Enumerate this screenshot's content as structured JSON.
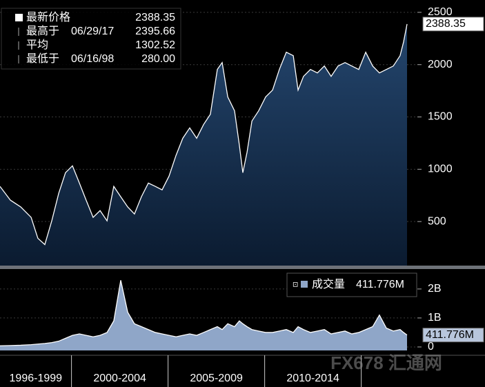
{
  "chart_data": [
    {
      "type": "area",
      "stats": [
        {
          "label": "最新价格",
          "value": 2388.35
        },
        {
          "label": "最高于",
          "date": "06/29/17",
          "value": 2395.66
        },
        {
          "label": "平均",
          "value": 1302.52
        },
        {
          "label": "最低于",
          "date": "06/16/98",
          "value": 280,
          "value_label": "280.00"
        }
      ],
      "x": [
        1996.3,
        1996.84,
        1997.37,
        1997.91,
        1998.26,
        1998.62,
        1998.98,
        1999.34,
        1999.69,
        2000.05,
        2000.41,
        2000.76,
        2001.12,
        2001.48,
        2001.84,
        2002.19,
        2002.55,
        2002.91,
        2003.26,
        2003.62,
        2003.98,
        2004.34,
        2004.69,
        2005.05,
        2005.41,
        2005.76,
        2006.12,
        2006.48,
        2006.84,
        2007.19,
        2007.55,
        2007.8,
        2008.09,
        2008.44,
        2008.69,
        2008.87,
        2009.09,
        2009.34,
        2009.69,
        2010.05,
        2010.41,
        2010.76,
        2011.12,
        2011.48,
        2011.73,
        2012.01,
        2012.37,
        2012.73,
        2013.09,
        2013.44,
        2013.8,
        2014.16,
        2014.51,
        2014.87,
        2015.23,
        2015.59,
        2015.94,
        2016.3,
        2016.66,
        2017.01,
        2017.19,
        2017.37
      ],
      "series": [
        {
          "name": "最新价格",
          "color": "#ffffff",
          "values": [
            836,
            704,
            640,
            540,
            340,
            280,
            507,
            770,
            967,
            1033,
            868,
            704,
            540,
            605,
            507,
            836,
            737,
            640,
            572,
            737,
            868,
            836,
            803,
            934,
            1132,
            1296,
            1395,
            1296,
            1428,
            1526,
            1954,
            2020,
            1691,
            1559,
            1230,
            967,
            1165,
            1461,
            1559,
            1691,
            1757,
            1954,
            2119,
            2086,
            1757,
            1888,
            1954,
            1921,
            1987,
            1888,
            1987,
            2020,
            1987,
            1954,
            2119,
            1987,
            1921,
            1954,
            1987,
            2086,
            2217,
            2388.35
          ]
        }
      ],
      "xlim": [
        1996.3,
        2017.37
      ],
      "ylim": [
        79,
        2618
      ],
      "yticks": [
        500,
        1000,
        1500,
        2000,
        2500
      ]
    },
    {
      "type": "area",
      "x": [
        1996.3,
        1996.84,
        1997.37,
        1997.91,
        1998.26,
        1998.62,
        1998.98,
        1999.34,
        1999.69,
        2000.05,
        2000.41,
        2000.76,
        2001.12,
        2001.48,
        2001.84,
        2002.19,
        2002.55,
        2002.91,
        2003.26,
        2003.62,
        2003.98,
        2004.34,
        2004.69,
        2005.05,
        2005.41,
        2005.76,
        2006.12,
        2006.48,
        2006.84,
        2007.19,
        2007.55,
        2007.8,
        2008.09,
        2008.44,
        2008.69,
        2008.87,
        2009.09,
        2009.34,
        2009.69,
        2010.05,
        2010.41,
        2010.76,
        2011.12,
        2011.48,
        2011.73,
        2012.01,
        2012.37,
        2012.73,
        2013.09,
        2013.44,
        2013.8,
        2014.16,
        2014.51,
        2014.87,
        2015.23,
        2015.59,
        2015.94,
        2016.3,
        2016.66,
        2017.01,
        2017.19,
        2017.37
      ],
      "series": [
        {
          "name": "成交量",
          "color": "#8fa6c8",
          "values": [
            0.04,
            0.05,
            0.06,
            0.08,
            0.1,
            0.12,
            0.15,
            0.2,
            0.3,
            0.4,
            0.45,
            0.4,
            0.35,
            0.4,
            0.5,
            0.9,
            2.3,
            1.2,
            0.8,
            0.7,
            0.6,
            0.5,
            0.45,
            0.4,
            0.35,
            0.4,
            0.45,
            0.4,
            0.5,
            0.6,
            0.7,
            0.6,
            0.8,
            0.7,
            0.9,
            0.8,
            0.7,
            0.6,
            0.55,
            0.5,
            0.5,
            0.55,
            0.6,
            0.5,
            0.7,
            0.6,
            0.5,
            0.55,
            0.6,
            0.45,
            0.5,
            0.55,
            0.45,
            0.5,
            0.6,
            0.7,
            1.1,
            0.65,
            0.55,
            0.6,
            0.5,
            0.411776
          ],
          "value_labels": [
            null,
            null,
            null,
            null,
            null,
            null,
            null,
            null,
            null,
            null,
            null,
            null,
            null,
            null,
            null,
            null,
            null,
            null,
            null,
            null,
            null,
            null,
            null,
            null,
            null,
            null,
            null,
            null,
            null,
            null,
            null,
            null,
            null,
            null,
            null,
            null,
            null,
            null,
            null,
            null,
            null,
            null,
            null,
            null,
            null,
            null,
            null,
            null,
            null,
            null,
            null,
            null,
            null,
            null,
            null,
            null,
            null,
            null,
            null,
            null,
            null,
            "411.776M"
          ]
        }
      ],
      "xlim": [
        1996.3,
        2017.37
      ],
      "ylim": [
        -0.12,
        2.64
      ],
      "yticks": [
        0,
        {
          "value": 1,
          "label": "1B"
        },
        {
          "value": 2,
          "label": "2B"
        }
      ],
      "periods": [
        {
          "label": "1996-1999",
          "start": 1996,
          "end": 2000
        },
        {
          "label": "2000-2004",
          "start": 2000,
          "end": 2005
        },
        {
          "label": "2005-2009",
          "start": 2005,
          "end": 2010
        },
        {
          "label": "2010-2014",
          "start": 2010,
          "end": 2015
        }
      ]
    }
  ],
  "watermark": "FX678 汇通网"
}
